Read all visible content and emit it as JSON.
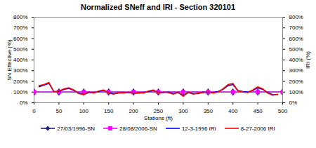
{
  "chart_data": {
    "type": "line",
    "title": "Normalized SNeff and IRI - Section 320101",
    "x_label": "Stations (ft)",
    "y_label": "SN Effective (%)",
    "y2_label": "IRI (%)",
    "xlim": [
      0,
      500
    ],
    "xticks": [
      0,
      50,
      100,
      150,
      200,
      250,
      300,
      350,
      400,
      450,
      500
    ],
    "ylim": [
      0,
      800
    ],
    "yticks": [
      {
        "value": 0,
        "label": "0%"
      },
      {
        "value": 100,
        "label": "100%"
      },
      {
        "value": 200,
        "label": "200%"
      },
      {
        "value": 300,
        "label": "300%"
      },
      {
        "value": 400,
        "label": "400%"
      },
      {
        "value": 500,
        "label": "500%"
      },
      {
        "value": 600,
        "label": "600%"
      },
      {
        "value": 700,
        "label": "700%"
      },
      {
        "value": 800,
        "label": "800%"
      }
    ],
    "y2lim": [
      0,
      800
    ],
    "y2ticks": [
      {
        "value": 0,
        "label": "0%"
      },
      {
        "value": 100,
        "label": "100%"
      },
      {
        "value": 200,
        "label": "200%"
      },
      {
        "value": 300,
        "label": "300%"
      },
      {
        "value": 400,
        "label": "400%"
      },
      {
        "value": 500,
        "label": "500%"
      },
      {
        "value": 600,
        "label": "600%"
      },
      {
        "value": 700,
        "label": "700%"
      },
      {
        "value": 800,
        "label": "800%"
      }
    ],
    "grid": false,
    "legend": "bottom",
    "series": [
      {
        "name": "27/03/1996-SN",
        "color": "#1f1f7a",
        "marker": "diamond",
        "line_style": "solid",
        "x": [
          0,
          50,
          100,
          150,
          200,
          250,
          300,
          350,
          400,
          450,
          500
        ],
        "values": [
          100,
          100,
          100,
          100,
          100,
          100,
          100,
          100,
          100,
          100,
          100
        ]
      },
      {
        "name": "28/08/2006-SN",
        "color": "#ff00ff",
        "marker": "square",
        "line_style": "solid",
        "x": [
          0,
          50,
          100,
          150,
          200,
          250,
          300,
          350,
          400,
          450,
          500
        ],
        "values": [
          100,
          100,
          100,
          100,
          100,
          100,
          100,
          100,
          100,
          100,
          100
        ]
      },
      {
        "name": "12-3-1996 IRI",
        "color": "#0000ff",
        "axis": "y2",
        "line_style": "solid",
        "x": [
          10,
          20,
          30,
          40,
          50,
          60,
          70,
          80,
          90,
          100,
          110,
          120,
          130,
          140,
          150,
          160,
          170,
          180,
          190,
          200,
          210,
          220,
          230,
          240,
          250,
          260,
          270,
          280,
          290,
          300,
          310,
          320,
          330,
          340,
          350,
          360,
          370,
          380,
          390,
          400,
          410,
          420,
          430,
          440,
          450,
          460,
          470,
          480,
          490
        ],
        "values": [
          150,
          165,
          180,
          105,
          105,
          125,
          135,
          115,
          90,
          80,
          95,
          95,
          105,
          115,
          95,
          85,
          90,
          95,
          95,
          90,
          90,
          95,
          105,
          115,
          95,
          95,
          100,
          85,
          95,
          65,
          95,
          85,
          85,
          100,
          95,
          95,
          105,
          125,
          160,
          170,
          115,
          105,
          100,
          115,
          140,
          125,
          95,
          75,
          75
        ]
      },
      {
        "name": "8-27-2006 IRI",
        "color": "#ff0000",
        "axis": "y2",
        "line_style": "solid",
        "x": [
          10,
          20,
          30,
          40,
          50,
          60,
          70,
          80,
          90,
          100,
          110,
          120,
          130,
          140,
          150,
          160,
          170,
          180,
          190,
          200,
          210,
          220,
          230,
          240,
          250,
          260,
          270,
          280,
          290,
          300,
          310,
          320,
          330,
          340,
          350,
          360,
          370,
          380,
          390,
          400,
          410,
          420,
          430,
          440,
          450,
          460,
          470,
          480,
          490
        ],
        "values": [
          160,
          170,
          190,
          100,
          110,
          130,
          140,
          120,
          85,
          75,
          100,
          90,
          110,
          120,
          90,
          80,
          95,
          90,
          100,
          85,
          95,
          90,
          110,
          120,
          90,
          100,
          95,
          80,
          100,
          60,
          100,
          80,
          90,
          95,
          100,
          90,
          100,
          130,
          170,
          180,
          110,
          100,
          95,
          120,
          150,
          130,
          90,
          70,
          80
        ]
      }
    ]
  }
}
